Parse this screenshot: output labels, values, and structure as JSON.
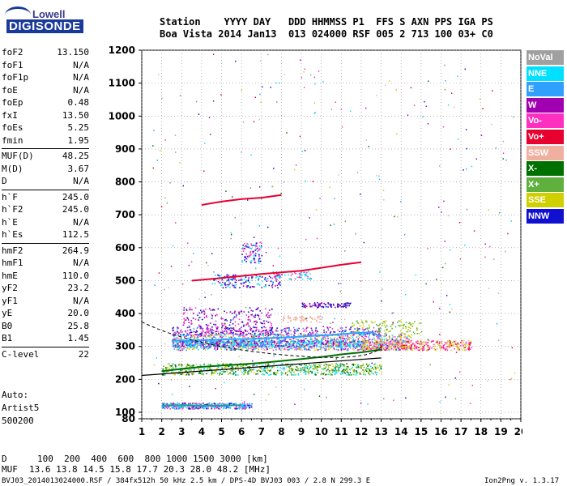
{
  "logo": {
    "line1": "Lowell",
    "line2": "DIGISONDE"
  },
  "header": {
    "row1": "Station    YYYY DAY   DDD HHMMSS P1  FFS S AXN PPS IGA PS",
    "row2": "Boa Vista 2014 Jan13  013 024000 RSF 005 2 713 100 03+ C0"
  },
  "params": [
    {
      "name": "foF2",
      "value": "13.150"
    },
    {
      "name": "foF1",
      "value": "N/A"
    },
    {
      "name": "foF1p",
      "value": "N/A"
    },
    {
      "name": "foE",
      "value": "N/A"
    },
    {
      "name": "foEp",
      "value": "0.48"
    },
    {
      "name": "fxI",
      "value": "13.50"
    },
    {
      "name": "foEs",
      "value": "5.25"
    },
    {
      "name": "fmin",
      "value": "1.95"
    },
    {
      "name": "MUF(D)",
      "value": "48.25"
    },
    {
      "name": "M(D)",
      "value": "3.67"
    },
    {
      "name": "D",
      "value": "N/A"
    },
    {
      "name": "h`F",
      "value": "245.0"
    },
    {
      "name": "h`F2",
      "value": "245.0"
    },
    {
      "name": "h`E",
      "value": "N/A"
    },
    {
      "name": "h`Es",
      "value": "112.5"
    },
    {
      "name": "hmF2",
      "value": "264.9"
    },
    {
      "name": "hmF1",
      "value": "N/A"
    },
    {
      "name": "hmE",
      "value": "110.0"
    },
    {
      "name": "yF2",
      "value": "23.2"
    },
    {
      "name": "yF1",
      "value": "N/A"
    },
    {
      "name": "yE",
      "value": "20.0"
    },
    {
      "name": "B0",
      "value": "25.8"
    },
    {
      "name": "B1",
      "value": "1.45"
    },
    {
      "name": "C-level",
      "value": "22"
    }
  ],
  "auto": {
    "line1": "Auto:",
    "line2": "Artist5",
    "line3": "500200"
  },
  "legend": [
    {
      "label": "NoVal",
      "color": "#a0a0a0"
    },
    {
      "label": "NNE",
      "color": "#00e0ff"
    },
    {
      "label": "E",
      "color": "#30a0ff"
    },
    {
      "label": "W",
      "color": "#a000b0"
    },
    {
      "label": "Vo-",
      "color": "#ff30c0"
    },
    {
      "label": "Vo+",
      "color": "#e80030"
    },
    {
      "label": "SSW",
      "color": "#f0b0a0"
    },
    {
      "label": "X-",
      "color": "#007000"
    },
    {
      "label": "X+",
      "color": "#60b040"
    },
    {
      "label": "SSE",
      "color": "#d0d000"
    },
    {
      "label": "NNW",
      "color": "#1010d0"
    }
  ],
  "footer": {
    "d_label": "D",
    "d_values": "100  200  400  600  800 1000 1500 3000 [km]",
    "muf_label": "MUF",
    "muf_values": "13.6 13.8 14.5 15.8 17.7 20.3 28.0 48.2 [MHz]",
    "file_info": "BVJ03_2014013024000.RSF / 384fx512h 50 kHz 2.5 km / DPS-4D BVJ03 003 / 2.8 N 299.3 E",
    "version": "Ion2Png v. 1.3.17"
  },
  "chart_data": {
    "type": "scatter",
    "title": "",
    "xlabel": "",
    "ylabel": "",
    "xlim": [
      1,
      20
    ],
    "ylim": [
      80,
      1200
    ],
    "xticks": [
      1,
      2,
      3,
      4,
      5,
      6,
      7,
      8,
      9,
      10,
      11,
      12,
      13,
      14,
      15,
      16,
      17,
      18,
      19,
      20
    ],
    "yticks": [
      80,
      100,
      200,
      300,
      400,
      500,
      600,
      700,
      800,
      900,
      1000,
      1100,
      1200
    ],
    "grid": "dotted",
    "traces": [
      {
        "name": "O-trace F2",
        "color": "#30a0ff",
        "points": [
          [
            2.5,
            318
          ],
          [
            3.5,
            318
          ],
          [
            4.5,
            320
          ],
          [
            5.5,
            322
          ],
          [
            6.5,
            323
          ],
          [
            7.5,
            326
          ],
          [
            8.5,
            328
          ],
          [
            9.5,
            332
          ],
          [
            10.5,
            335
          ],
          [
            11.5,
            340
          ],
          [
            12.5,
            343
          ],
          [
            13,
            330
          ]
        ]
      },
      {
        "name": "X-trace F2",
        "color": "#007000",
        "points": [
          [
            2,
            225
          ],
          [
            3,
            232
          ],
          [
            4,
            238
          ],
          [
            5,
            242
          ],
          [
            6,
            246
          ],
          [
            7,
            250
          ],
          [
            8,
            256
          ],
          [
            9,
            262
          ],
          [
            10,
            268
          ],
          [
            11,
            276
          ],
          [
            12,
            282
          ],
          [
            13,
            290
          ]
        ]
      },
      {
        "name": "Es",
        "color": "#20a0a0",
        "points": [
          [
            2,
            120
          ],
          [
            3,
            122
          ],
          [
            4,
            120
          ],
          [
            5,
            120
          ],
          [
            6,
            122
          ]
        ]
      },
      {
        "name": "2-hop F",
        "color": "#e80030",
        "points": [
          [
            3.5,
            500
          ],
          [
            5,
            508
          ],
          [
            7,
            520
          ],
          [
            9,
            530
          ],
          [
            11,
            548
          ],
          [
            12,
            556
          ]
        ]
      },
      {
        "name": "3-hop F",
        "color": "#e80030",
        "points": [
          [
            4,
            730
          ],
          [
            5,
            740
          ],
          [
            6,
            748
          ],
          [
            7,
            752
          ],
          [
            8,
            760
          ]
        ]
      }
    ]
  }
}
